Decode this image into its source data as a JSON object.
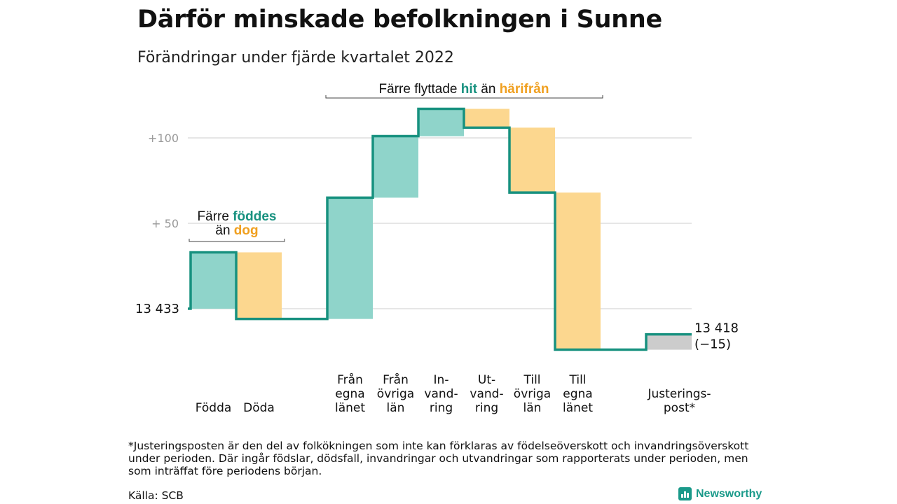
{
  "header": {
    "title": "Därför minskade befolkningen i Sunne",
    "subtitle": "Förändringar under fjärde kvartalet 2022"
  },
  "chart_data": {
    "type": "waterfall",
    "start_value": 13433,
    "start_label": "13 433",
    "end_label_line1": "13 418",
    "end_label_line2": "(−15)",
    "y_axis": {
      "baseline": 13433,
      "ticks": [
        {
          "offset": 50,
          "label": "+ 50"
        },
        {
          "offset": 100,
          "label": "+100"
        }
      ],
      "ylim_offset": [
        -30,
        120
      ]
    },
    "steps": [
      {
        "key": "fodda",
        "label_lines": [
          "Födda"
        ],
        "delta": 33,
        "kind": "in"
      },
      {
        "key": "doda",
        "label_lines": [
          "Döda"
        ],
        "delta": -39,
        "kind": "out"
      },
      {
        "key": "fran-egna-lanet",
        "label_lines": [
          "Från",
          "egna",
          "länet"
        ],
        "delta": 71,
        "kind": "in"
      },
      {
        "key": "fran-ovriga-lan",
        "label_lines": [
          "Från",
          "övriga",
          "län"
        ],
        "delta": 36,
        "kind": "in"
      },
      {
        "key": "invandring",
        "label_lines": [
          "In-",
          "vand-",
          "ring"
        ],
        "delta": 16,
        "kind": "in"
      },
      {
        "key": "utvandring",
        "label_lines": [
          "Ut-",
          "vand-",
          "ring"
        ],
        "delta": -11,
        "kind": "out"
      },
      {
        "key": "till-ovriga-lan",
        "label_lines": [
          "Till",
          "övriga",
          "län"
        ],
        "delta": -38,
        "kind": "out"
      },
      {
        "key": "till-egna-lanet",
        "label_lines": [
          "Till",
          "egna",
          "länet"
        ],
        "delta": -92,
        "kind": "out"
      },
      {
        "key": "justeringspost",
        "label_lines": [
          "Justerings-",
          "post*"
        ],
        "delta": 9,
        "kind": "adjust"
      }
    ],
    "annotations": {
      "births": {
        "prefix": "Färre ",
        "highlight1": "föddes",
        "middle": "än ",
        "highlight2": "dog"
      },
      "migration": {
        "prefix": "Färre flyttade ",
        "highlight1": "hit",
        "middle": " än ",
        "highlight2": "härifrån"
      }
    },
    "colors": {
      "in": "#8fd4ca",
      "out": "#fcd78f",
      "adjust": "#cccccc",
      "line": "#17917f",
      "highlight_in": "#17917f",
      "highlight_out": "#f0a020",
      "grid": "#dddddd",
      "tick_text": "#999999"
    }
  },
  "footnote": "*Justeringsposten är den del av folkökningen som inte kan förklaras av födelseöverskott och invandringsöverskott under perioden. Där ingår födslar, dödsfall, invandringar och utvandringar som rapporterats under perioden, men som inträffat före periodens början.",
  "source": "Källa: SCB",
  "brand": {
    "name": "Newsworthy"
  }
}
